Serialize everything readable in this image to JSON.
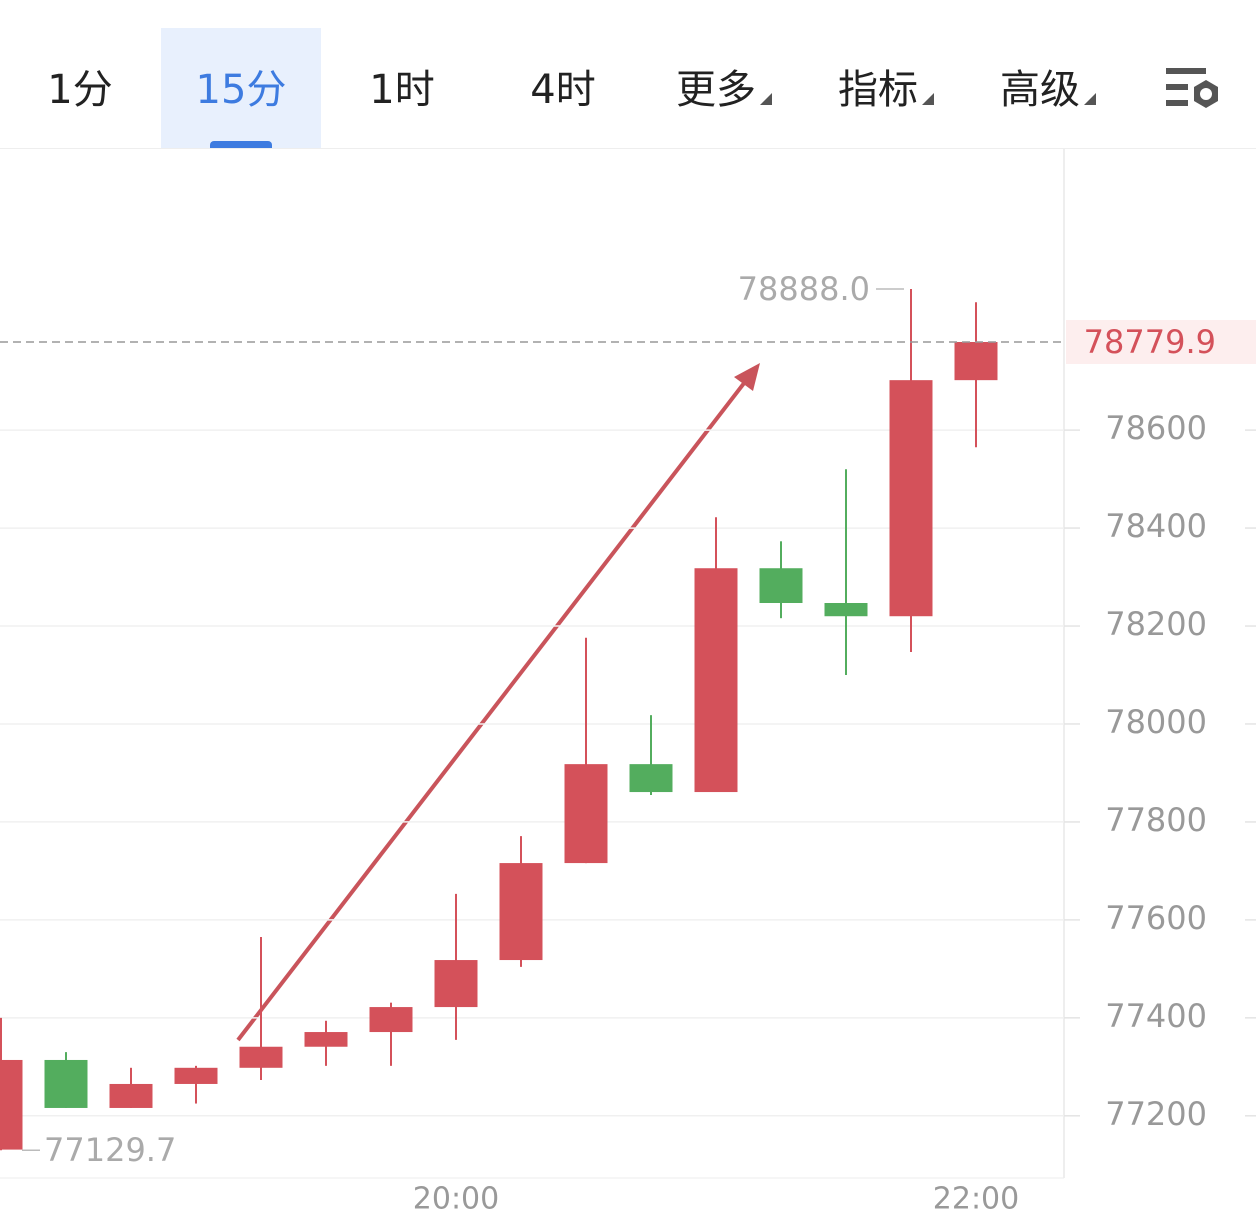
{
  "tabs": [
    "1分",
    "15分",
    "1时",
    "4时",
    "更多",
    "指标",
    "高级"
  ],
  "active_tab": 1,
  "chart_data": {
    "type": "candlestick",
    "categories": [
      null,
      null,
      null,
      null,
      null,
      null,
      null,
      "20:00",
      null,
      null,
      null,
      null,
      null,
      null,
      null,
      "22:00"
    ],
    "open": [
      77131,
      77314,
      77216,
      77265,
      77298,
      77341,
      77371,
      77422,
      77518,
      77716,
      77918,
      77861,
      78318,
      78247,
      78220,
      78702
    ],
    "close": [
      77314,
      77216,
      77265,
      77298,
      77341,
      77371,
      77422,
      77518,
      77716,
      77918,
      77861,
      78318,
      78247,
      78220,
      78702,
      78779.9
    ],
    "high": [
      77400,
      77330,
      77298,
      77302,
      77565,
      77394,
      77431,
      77653,
      77771,
      78176,
      78018,
      78422,
      78373,
      78520,
      78888,
      78861
    ],
    "low": [
      77129.7,
      77216,
      77216,
      77225,
      77273,
      77302,
      77302,
      77355,
      77504,
      77716,
      77855,
      77861,
      78216,
      78100,
      78147,
      78565
    ],
    "up_color": "#d4515a",
    "down_color": "#53ad5e",
    "ylim": [
      77073,
      79176
    ],
    "yticks": [
      77200,
      77400,
      77600,
      77800,
      78000,
      78200,
      78400,
      78600
    ],
    "grid": true,
    "max_label": {
      "value": 78888,
      "label": "78888.0"
    },
    "min_label": {
      "value": 77129.7,
      "label": "77129.7"
    },
    "last_price": {
      "value": 78779.9,
      "label": "78779.9"
    }
  }
}
